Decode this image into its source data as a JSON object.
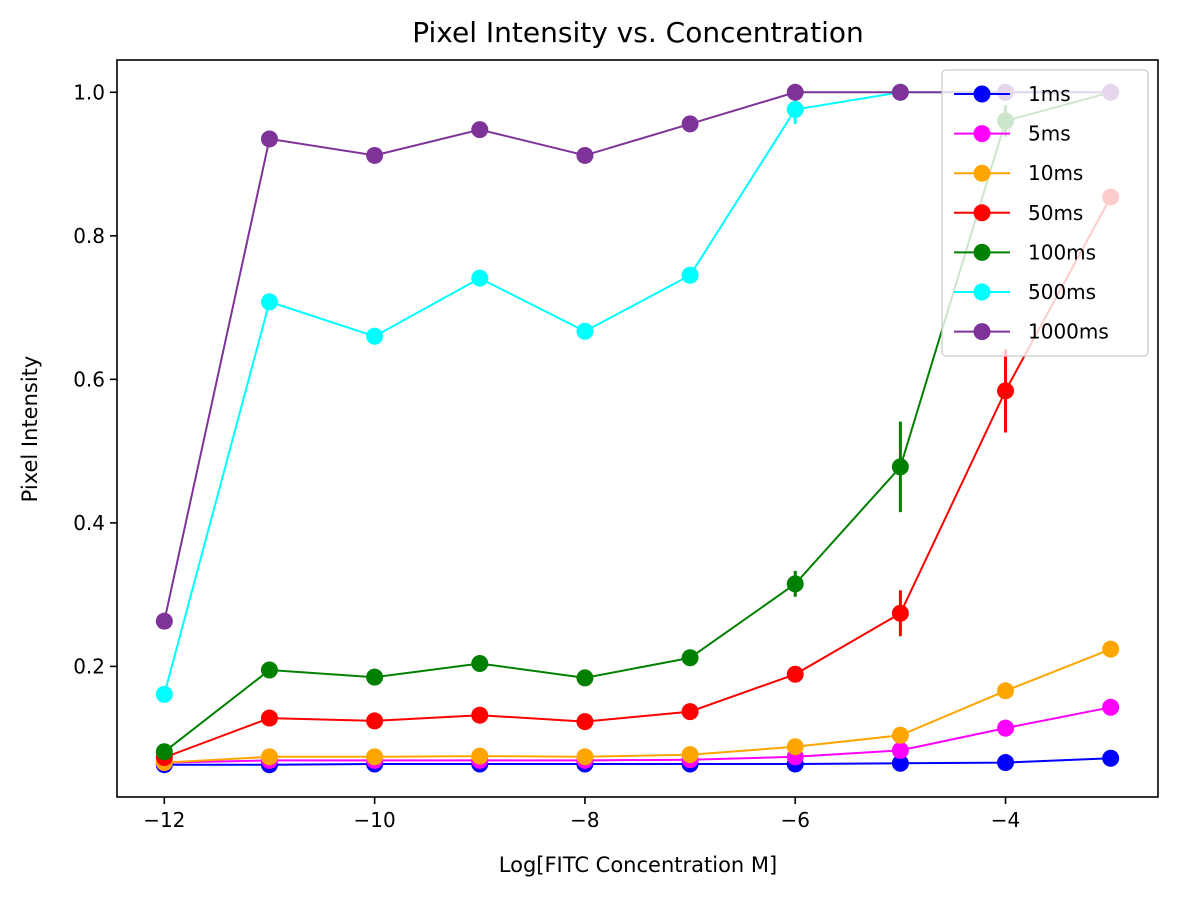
{
  "chart_data": {
    "type": "line",
    "title": "Pixel Intensity vs. Concentration",
    "xlabel": "Log[FITC Concentration M]",
    "ylabel": "Pixel Intensity",
    "xlim": [
      -12.45,
      -2.55
    ],
    "ylim": [
      0.018,
      1.045
    ],
    "xticks": [
      -12,
      -10,
      -8,
      -6,
      -4
    ],
    "xtick_labels": [
      "−12",
      "−10",
      "−8",
      "−6",
      "−4"
    ],
    "yticks": [
      0.2,
      0.4,
      0.6,
      0.8,
      1.0
    ],
    "ytick_labels": [
      "0.2",
      "0.4",
      "0.6",
      "0.8",
      "1.0"
    ],
    "grid": false,
    "legend_position": "top-right",
    "x": [
      -12,
      -11,
      -10,
      -9,
      -8,
      -7,
      -6,
      -5,
      -4,
      -3
    ],
    "series": [
      {
        "name": "1ms",
        "color": "#0000ff",
        "values": [
          0.063,
          0.063,
          0.064,
          0.064,
          0.064,
          0.064,
          0.064,
          0.065,
          0.066,
          0.072
        ],
        "errors": [
          0,
          0,
          0,
          0,
          0,
          0,
          0,
          0,
          0,
          0
        ]
      },
      {
        "name": "5ms",
        "color": "#ff00ff",
        "values": [
          0.066,
          0.069,
          0.069,
          0.069,
          0.069,
          0.07,
          0.074,
          0.083,
          0.114,
          0.143
        ],
        "errors": [
          0,
          0,
          0,
          0,
          0,
          0,
          0,
          0,
          0,
          0
        ]
      },
      {
        "name": "10ms",
        "color": "#ffa500",
        "values": [
          0.066,
          0.074,
          0.074,
          0.075,
          0.074,
          0.077,
          0.088,
          0.104,
          0.166,
          0.224
        ],
        "errors": [
          0,
          0,
          0,
          0,
          0,
          0,
          0,
          0,
          0,
          0
        ]
      },
      {
        "name": "50ms",
        "color": "#ff0000",
        "values": [
          0.073,
          0.128,
          0.124,
          0.132,
          0.123,
          0.137,
          0.189,
          0.274,
          0.584,
          0.854
        ],
        "errors": [
          0,
          0,
          0,
          0,
          0,
          0,
          0,
          0.032,
          0.058,
          0
        ]
      },
      {
        "name": "100ms",
        "color": "#008000",
        "values": [
          0.081,
          0.195,
          0.185,
          0.204,
          0.184,
          0.212,
          0.315,
          0.478,
          0.96,
          1.0
        ],
        "errors": [
          0,
          0,
          0,
          0,
          0,
          0,
          0.018,
          0.063,
          0.022,
          0
        ]
      },
      {
        "name": "500ms",
        "color": "#00ffff",
        "values": [
          0.161,
          0.708,
          0.66,
          0.741,
          0.667,
          0.745,
          0.976,
          1.0,
          1.0,
          1.0
        ],
        "errors": [
          0,
          0,
          0,
          0,
          0,
          0,
          0.02,
          0,
          0,
          0
        ]
      },
      {
        "name": "1000ms",
        "color": "#7f3399",
        "values": [
          0.263,
          0.935,
          0.912,
          0.948,
          0.912,
          0.956,
          1.0,
          1.0,
          1.0,
          1.0
        ],
        "errors": [
          0,
          0,
          0,
          0,
          0,
          0,
          0,
          0,
          0,
          0
        ]
      }
    ]
  }
}
